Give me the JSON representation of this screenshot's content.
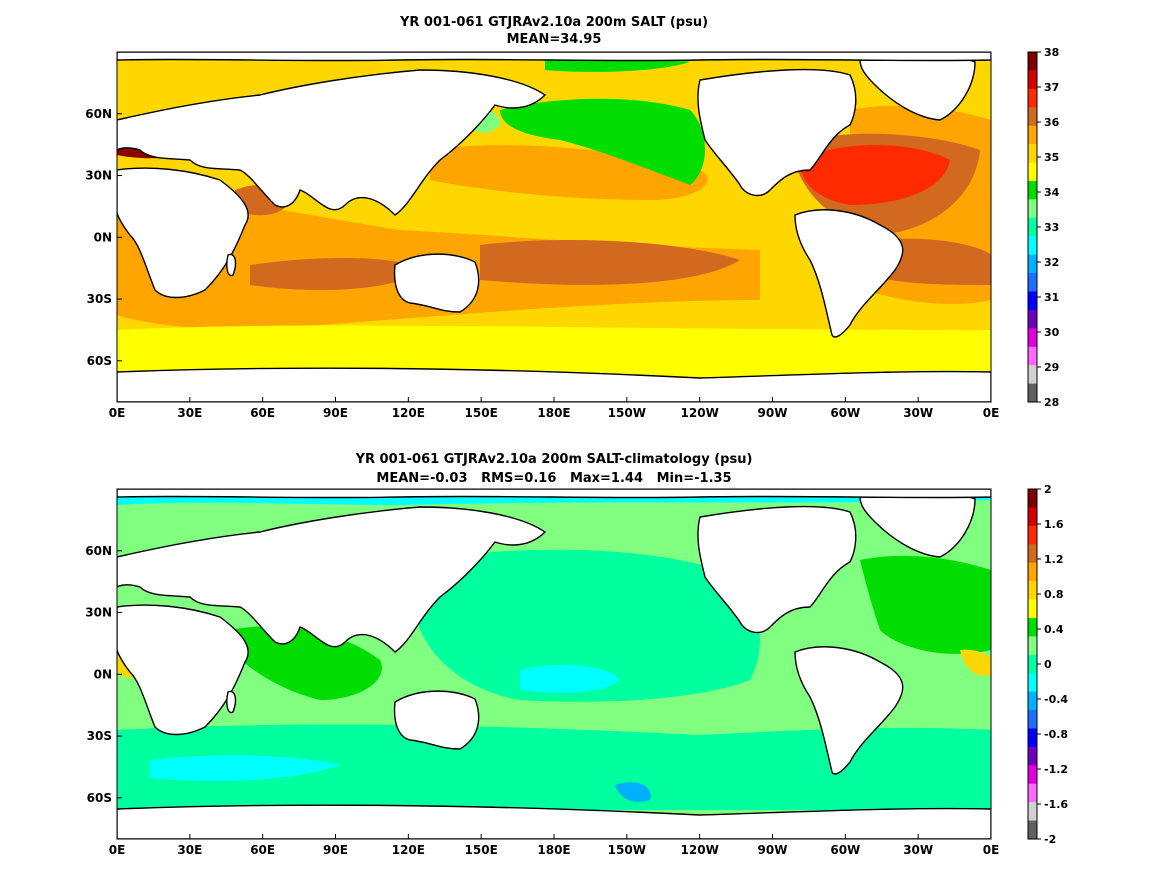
{
  "chart_data": [
    {
      "type": "heatmap",
      "title": "YR 001-061 GTJRAv2.10a 200m SALT (psu)",
      "subtitle": "MEAN=34.95",
      "xticks": [
        "0E",
        "30E",
        "60E",
        "90E",
        "120E",
        "150E",
        "180E",
        "150W",
        "120W",
        "90W",
        "60W",
        "30W",
        "0E"
      ],
      "yticks": [
        "60N",
        "30N",
        "0N",
        "30S",
        "60S"
      ],
      "xlim": [
        0,
        360
      ],
      "ylim": [
        -80,
        90
      ],
      "colorbar": {
        "ticks": [
          "38",
          "37",
          "36",
          "35",
          "34",
          "33",
          "32",
          "31",
          "30",
          "29",
          "28"
        ],
        "colors": [
          "#7f0000",
          "#d40000",
          "#ff2a00",
          "#d2691e",
          "#ffa500",
          "#ffd700",
          "#ffff00",
          "#00dd00",
          "#80ff80",
          "#00ff9f",
          "#00ffff",
          "#00b0ff",
          "#1e6fff",
          "#0000ff",
          "#7000c0",
          "#e000e0",
          "#ff66ff",
          "#d0d0d0",
          "#606060"
        ]
      },
      "fields": {
        "ocean": "#ffd700",
        "high": "#ffa500",
        "higher": "#d2691e",
        "highest": "#ff3300",
        "max": "#8b0000",
        "low": "#00dd00",
        "lower": "#80ff80",
        "land": "#ffffff"
      }
    },
    {
      "type": "heatmap",
      "title": "YR 001-061 GTJRAv2.10a 200m SALT-climatology (psu)",
      "subtitle": "MEAN=-0.03   RMS=0.16   Max=1.44   Min=-1.35",
      "xticks": [
        "0E",
        "30E",
        "60E",
        "90E",
        "120E",
        "150E",
        "180E",
        "150W",
        "120W",
        "90W",
        "60W",
        "30W",
        "0E"
      ],
      "yticks": [
        "60N",
        "30N",
        "0N",
        "30S",
        "60S"
      ],
      "xlim": [
        0,
        360
      ],
      "ylim": [
        -80,
        90
      ],
      "colorbar": {
        "ticks": [
          "2",
          "1.6",
          "1.2",
          "0.8",
          "0.4",
          "0",
          "-0.4",
          "-0.8",
          "-1.2",
          "-1.6",
          "-2"
        ],
        "colors": [
          "#7f0000",
          "#d40000",
          "#ff2a00",
          "#d2691e",
          "#ffa500",
          "#ffd700",
          "#ffff00",
          "#00dd00",
          "#80ff80",
          "#00ff9f",
          "#00ffff",
          "#00b0ff",
          "#1e6fff",
          "#0000ff",
          "#7000c0",
          "#e000e0",
          "#ff66ff",
          "#d0d0d0",
          "#606060"
        ]
      },
      "fields": {
        "ocean": "#80ff80",
        "pos": "#00dd00",
        "neg": "#00ff9f",
        "neg2": "#00ffff",
        "neg3": "#00b0ff",
        "posmax": "#ffd700",
        "land": "#ffffff"
      }
    }
  ]
}
